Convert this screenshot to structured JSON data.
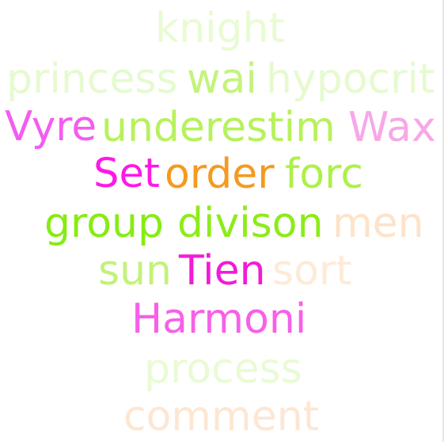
{
  "words": [
    {
      "text": "knight",
      "color": "#e9fbd1"
    },
    {
      "text": "princess",
      "color": "#e6fad0"
    },
    {
      "text": "wai",
      "color": "#c2f47b"
    },
    {
      "text": "hypocrit",
      "color": "#e6fad0"
    },
    {
      "text": "Vyre",
      "color": "#f55bf0"
    },
    {
      "text": "underestim",
      "color": "#b6f25c"
    },
    {
      "text": "Wax",
      "color": "#f6a8e7"
    },
    {
      "text": "Set",
      "color": "#ff18e6"
    },
    {
      "text": "order",
      "color": "#f59a1f"
    },
    {
      "text": "forc",
      "color": "#aef04a"
    },
    {
      "text": "group",
      "color": "#86ec12"
    },
    {
      "text": "divison",
      "color": "#8cec18"
    },
    {
      "text": "men",
      "color": "#fde3c9"
    },
    {
      "text": "sun",
      "color": "#c2f27a"
    },
    {
      "text": "Tien",
      "color": "#f21bd8"
    },
    {
      "text": "sort",
      "color": "#fdebd8"
    },
    {
      "text": "Harmoni",
      "color": "#f760e8"
    },
    {
      "text": "process",
      "color": "#e9fbd4"
    },
    {
      "text": "comment",
      "color": "#fde7d2"
    }
  ]
}
